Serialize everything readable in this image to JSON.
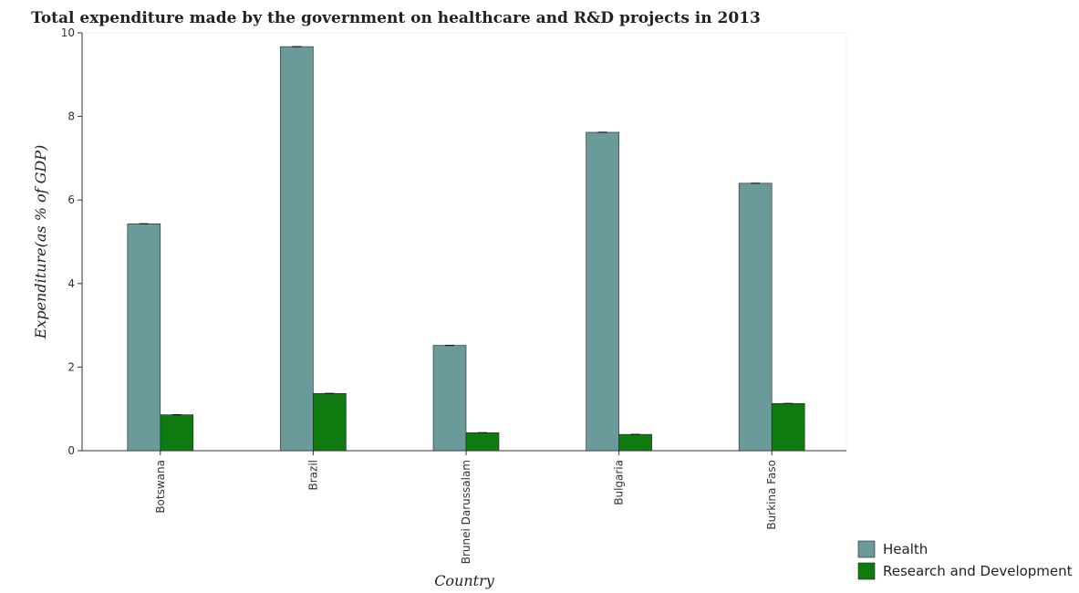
{
  "chart_data": {
    "type": "bar",
    "title": "Total expenditure made by the government on healthcare and R&D projects in 2013",
    "xlabel": "Country",
    "ylabel": "Expenditure(as % of GDP)",
    "categories": [
      "Botswana",
      "Brazil",
      "Brunei Darussalam",
      "Bulgaria",
      "Burkina Faso"
    ],
    "ylim": [
      0,
      10
    ],
    "yticks": [
      "0",
      "2",
      "4",
      "6",
      "8",
      "10"
    ],
    "series": [
      {
        "name": "Health",
        "color": "#6a9a9a",
        "values": [
          5.43,
          9.67,
          2.52,
          7.62,
          6.4
        ]
      },
      {
        "name": "Research and Development",
        "color": "#0f7a0f",
        "values": [
          0.86,
          1.37,
          0.43,
          0.39,
          1.13
        ]
      }
    ],
    "errorbars": true,
    "grid": false,
    "legend_position": "bottom-right"
  }
}
